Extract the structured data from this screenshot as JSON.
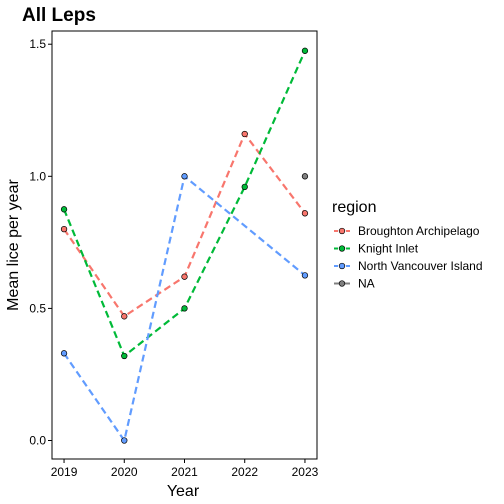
{
  "chart_data": {
    "type": "line",
    "title": "All Leps",
    "xlabel": "Year",
    "ylabel": "Mean lice per year",
    "x": [
      2019,
      2020,
      2021,
      2022,
      2023
    ],
    "x_tick_labels": [
      "2019",
      "2020",
      "2021",
      "2022",
      "2023"
    ],
    "xlim": [
      2018.8,
      2023.2
    ],
    "ylim": [
      -0.07,
      1.55
    ],
    "y_ticks": [
      0.0,
      0.5,
      1.0,
      1.5
    ],
    "y_tick_labels": [
      "0.0",
      "0.5",
      "1.0",
      "1.5"
    ],
    "grid": false,
    "legend": {
      "title": "region",
      "position": "right",
      "entries": [
        "Broughton Archipelago",
        "Knight Inlet",
        "North Vancouver Island",
        "NA"
      ]
    },
    "series": [
      {
        "name": "Broughton Archipelago",
        "color": "#F8766D",
        "dashed": true,
        "values": [
          0.8,
          0.47,
          0.62,
          1.16,
          0.86
        ]
      },
      {
        "name": "Knight Inlet",
        "color": "#00BA38",
        "dashed": true,
        "values": [
          0.875,
          0.32,
          0.5,
          0.96,
          1.475
        ]
      },
      {
        "name": "North Vancouver Island",
        "color": "#619CFF",
        "dashed": true,
        "values": [
          0.33,
          0.0,
          1.0,
          null,
          0.625
        ]
      },
      {
        "name": "NA",
        "color": "#7F7F7F",
        "dashed": false,
        "values": [
          null,
          null,
          null,
          null,
          1.0
        ]
      }
    ]
  }
}
